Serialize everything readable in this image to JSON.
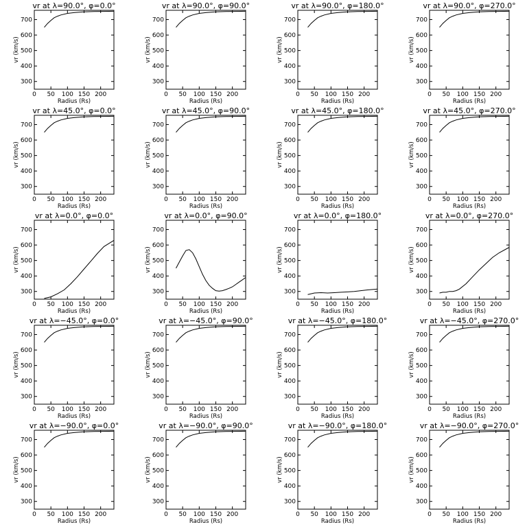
{
  "chart_data": [
    {
      "type": "line",
      "title": "vr at λ=90.0°, φ=0.0°",
      "xlabel": "Radius (Rs)",
      "ylabel": "vr (km/s)",
      "xlim": [
        0,
        240
      ],
      "ylim": [
        250,
        760
      ],
      "xticks": [
        0,
        50,
        100,
        150,
        200
      ],
      "yticks": [
        300,
        400,
        500,
        600,
        700
      ],
      "x": [
        30,
        40,
        50,
        60,
        70,
        80,
        100,
        120,
        150,
        180,
        210,
        240
      ],
      "y": [
        650,
        675,
        695,
        712,
        722,
        730,
        740,
        745,
        750,
        752,
        753,
        754
      ]
    },
    {
      "type": "line",
      "title": "vr at λ=90.0°, φ=90.0°",
      "xlabel": "Radius (Rs)",
      "ylabel": "vr (km/s)",
      "xlim": [
        0,
        240
      ],
      "ylim": [
        250,
        760
      ],
      "xticks": [
        0,
        50,
        100,
        150,
        200
      ],
      "yticks": [
        300,
        400,
        500,
        600,
        700
      ],
      "x": [
        30,
        40,
        50,
        60,
        70,
        80,
        100,
        120,
        150,
        180,
        210,
        240
      ],
      "y": [
        650,
        675,
        695,
        712,
        722,
        730,
        740,
        745,
        750,
        752,
        753,
        754
      ]
    },
    {
      "type": "line",
      "title": "vr at λ=90.0°, φ=180.0°",
      "xlabel": "Radius (Rs)",
      "ylabel": "vr (km/s)",
      "xlim": [
        0,
        240
      ],
      "ylim": [
        250,
        760
      ],
      "xticks": [
        0,
        50,
        100,
        150,
        200
      ],
      "yticks": [
        300,
        400,
        500,
        600,
        700
      ],
      "x": [
        30,
        40,
        50,
        60,
        70,
        80,
        100,
        120,
        150,
        180,
        210,
        240
      ],
      "y": [
        650,
        675,
        695,
        712,
        722,
        730,
        740,
        745,
        750,
        752,
        753,
        754
      ]
    },
    {
      "type": "line",
      "title": "vr at λ=90.0°, φ=270.0°",
      "xlabel": "Radius (Rs)",
      "ylabel": "vr (km/s)",
      "xlim": [
        0,
        240
      ],
      "ylim": [
        250,
        760
      ],
      "xticks": [
        0,
        50,
        100,
        150,
        200
      ],
      "yticks": [
        300,
        400,
        500,
        600,
        700
      ],
      "x": [
        30,
        40,
        50,
        60,
        70,
        80,
        100,
        120,
        150,
        180,
        210,
        240
      ],
      "y": [
        650,
        675,
        695,
        712,
        722,
        730,
        740,
        745,
        750,
        752,
        753,
        754
      ]
    },
    {
      "type": "line",
      "title": "vr at λ=45.0°, φ=0.0°",
      "xlabel": "Radius (Rs)",
      "ylabel": "vr (km/s)",
      "xlim": [
        0,
        240
      ],
      "ylim": [
        250,
        760
      ],
      "xticks": [
        0,
        50,
        100,
        150,
        200
      ],
      "yticks": [
        300,
        400,
        500,
        600,
        700
      ],
      "x": [
        30,
        40,
        50,
        60,
        70,
        80,
        100,
        120,
        150,
        180,
        210,
        240
      ],
      "y": [
        650,
        675,
        695,
        712,
        722,
        730,
        740,
        745,
        750,
        752,
        753,
        754
      ]
    },
    {
      "type": "line",
      "title": "vr at λ=45.0°, φ=90.0°",
      "xlabel": "Radius (Rs)",
      "ylabel": "vr (km/s)",
      "xlim": [
        0,
        240
      ],
      "ylim": [
        250,
        760
      ],
      "xticks": [
        0,
        50,
        100,
        150,
        200
      ],
      "yticks": [
        300,
        400,
        500,
        600,
        700
      ],
      "x": [
        30,
        40,
        50,
        60,
        70,
        80,
        100,
        120,
        150,
        180,
        210,
        240
      ],
      "y": [
        650,
        675,
        695,
        712,
        722,
        730,
        740,
        745,
        750,
        752,
        753,
        754
      ]
    },
    {
      "type": "line",
      "title": "vr at λ=45.0°, φ=180.0°",
      "xlabel": "Radius (Rs)",
      "ylabel": "vr (km/s)",
      "xlim": [
        0,
        240
      ],
      "ylim": [
        250,
        760
      ],
      "xticks": [
        0,
        50,
        100,
        150,
        200
      ],
      "yticks": [
        300,
        400,
        500,
        600,
        700
      ],
      "x": [
        30,
        40,
        50,
        60,
        70,
        80,
        100,
        120,
        150,
        180,
        210,
        240
      ],
      "y": [
        650,
        675,
        695,
        712,
        722,
        730,
        740,
        745,
        750,
        752,
        753,
        754
      ]
    },
    {
      "type": "line",
      "title": "vr at λ=45.0°, φ=270.0°",
      "xlabel": "Radius (Rs)",
      "ylabel": "vr (km/s)",
      "xlim": [
        0,
        240
      ],
      "ylim": [
        250,
        760
      ],
      "xticks": [
        0,
        50,
        100,
        150,
        200
      ],
      "yticks": [
        300,
        400,
        500,
        600,
        700
      ],
      "x": [
        30,
        40,
        50,
        60,
        70,
        80,
        100,
        120,
        150,
        180,
        210,
        240
      ],
      "y": [
        650,
        675,
        695,
        712,
        722,
        730,
        740,
        745,
        750,
        752,
        753,
        754
      ]
    },
    {
      "type": "line",
      "title": "vr at λ=0.0°, φ=0.0°",
      "xlabel": "Radius (Rs)",
      "ylabel": "vr (km/s)",
      "xlim": [
        0,
        240
      ],
      "ylim": [
        250,
        760
      ],
      "xticks": [
        0,
        50,
        100,
        150,
        200
      ],
      "yticks": [
        300,
        400,
        500,
        600,
        700
      ],
      "x": [
        30,
        50,
        70,
        90,
        110,
        130,
        150,
        170,
        190,
        210,
        240
      ],
      "y": [
        255,
        265,
        285,
        310,
        350,
        395,
        445,
        495,
        545,
        590,
        630
      ]
    },
    {
      "type": "line",
      "title": "vr at λ=0.0°, φ=90.0°",
      "xlabel": "Radius (Rs)",
      "ylabel": "vr (km/s)",
      "xlim": [
        0,
        240
      ],
      "ylim": [
        250,
        760
      ],
      "xticks": [
        0,
        50,
        100,
        150,
        200
      ],
      "yticks": [
        300,
        400,
        500,
        600,
        700
      ],
      "x": [
        30,
        40,
        50,
        60,
        70,
        80,
        90,
        100,
        110,
        120,
        130,
        140,
        150,
        160,
        170,
        180,
        190,
        200,
        210,
        220,
        230,
        240
      ],
      "y": [
        450,
        490,
        530,
        565,
        570,
        550,
        510,
        460,
        410,
        370,
        340,
        320,
        305,
        302,
        305,
        312,
        320,
        330,
        345,
        360,
        375,
        390
      ]
    },
    {
      "type": "line",
      "title": "vr at λ=0.0°, φ=180.0°",
      "xlabel": "Radius (Rs)",
      "ylabel": "vr (km/s)",
      "xlim": [
        0,
        240
      ],
      "ylim": [
        250,
        760
      ],
      "xticks": [
        0,
        50,
        100,
        150,
        200
      ],
      "yticks": [
        300,
        400,
        500,
        600,
        700
      ],
      "x": [
        30,
        50,
        70,
        90,
        110,
        130,
        150,
        170,
        190,
        210,
        240
      ],
      "y": [
        280,
        290,
        292,
        290,
        292,
        295,
        297,
        300,
        305,
        310,
        315
      ]
    },
    {
      "type": "line",
      "title": "vr at λ=0.0°, φ=270.0°",
      "xlabel": "Radius (Rs)",
      "ylabel": "vr (km/s)",
      "xlim": [
        0,
        240
      ],
      "ylim": [
        250,
        760
      ],
      "xticks": [
        0,
        50,
        100,
        150,
        200
      ],
      "yticks": [
        300,
        400,
        500,
        600,
        700
      ],
      "x": [
        30,
        40,
        50,
        60,
        70,
        80,
        90,
        110,
        130,
        150,
        170,
        190,
        210,
        240
      ],
      "y": [
        290,
        295,
        295,
        300,
        300,
        305,
        315,
        350,
        395,
        440,
        480,
        520,
        550,
        585
      ]
    },
    {
      "type": "line",
      "title": "vr at λ=−45.0°, φ=0.0°",
      "xlabel": "Radius (Rs)",
      "ylabel": "vr (km/s)",
      "xlim": [
        0,
        240
      ],
      "ylim": [
        250,
        760
      ],
      "xticks": [
        0,
        50,
        100,
        150,
        200
      ],
      "yticks": [
        300,
        400,
        500,
        600,
        700
      ],
      "x": [
        30,
        40,
        50,
        60,
        70,
        80,
        100,
        120,
        150,
        180,
        210,
        240
      ],
      "y": [
        650,
        675,
        695,
        712,
        722,
        730,
        740,
        745,
        750,
        752,
        753,
        754
      ]
    },
    {
      "type": "line",
      "title": "vr at λ=−45.0°, φ=90.0°",
      "xlabel": "Radius (Rs)",
      "ylabel": "vr (km/s)",
      "xlim": [
        0,
        240
      ],
      "ylim": [
        250,
        760
      ],
      "xticks": [
        0,
        50,
        100,
        150,
        200
      ],
      "yticks": [
        300,
        400,
        500,
        600,
        700
      ],
      "x": [
        30,
        40,
        50,
        60,
        70,
        80,
        100,
        120,
        150,
        180,
        210,
        240
      ],
      "y": [
        650,
        675,
        695,
        712,
        722,
        730,
        740,
        745,
        750,
        752,
        753,
        754
      ]
    },
    {
      "type": "line",
      "title": "vr at λ=−45.0°, φ=180.0°",
      "xlabel": "Radius (Rs)",
      "ylabel": "vr (km/s)",
      "xlim": [
        0,
        240
      ],
      "ylim": [
        250,
        760
      ],
      "xticks": [
        0,
        50,
        100,
        150,
        200
      ],
      "yticks": [
        300,
        400,
        500,
        600,
        700
      ],
      "x": [
        30,
        40,
        50,
        60,
        70,
        80,
        100,
        120,
        150,
        180,
        210,
        240
      ],
      "y": [
        650,
        675,
        695,
        712,
        722,
        730,
        740,
        745,
        750,
        752,
        753,
        754
      ]
    },
    {
      "type": "line",
      "title": "vr at λ=−45.0°, φ=270.0°",
      "xlabel": "Radius (Rs)",
      "ylabel": "vr (km/s)",
      "xlim": [
        0,
        240
      ],
      "ylim": [
        250,
        760
      ],
      "xticks": [
        0,
        50,
        100,
        150,
        200
      ],
      "yticks": [
        300,
        400,
        500,
        600,
        700
      ],
      "x": [
        30,
        40,
        50,
        60,
        70,
        80,
        100,
        120,
        150,
        180,
        210,
        240
      ],
      "y": [
        650,
        675,
        695,
        712,
        722,
        730,
        740,
        745,
        750,
        752,
        753,
        754
      ]
    },
    {
      "type": "line",
      "title": "vr at λ=−90.0°, φ=0.0°",
      "xlabel": "Radius (Rs)",
      "ylabel": "vr (km/s)",
      "xlim": [
        0,
        240
      ],
      "ylim": [
        250,
        760
      ],
      "xticks": [
        0,
        50,
        100,
        150,
        200
      ],
      "yticks": [
        300,
        400,
        500,
        600,
        700
      ],
      "x": [
        30,
        40,
        50,
        60,
        70,
        80,
        100,
        120,
        150,
        180,
        210,
        240
      ],
      "y": [
        650,
        675,
        695,
        712,
        722,
        730,
        740,
        745,
        750,
        752,
        753,
        754
      ]
    },
    {
      "type": "line",
      "title": "vr at λ=−90.0°, φ=90.0°",
      "xlabel": "Radius (Rs)",
      "ylabel": "vr (km/s)",
      "xlim": [
        0,
        240
      ],
      "ylim": [
        250,
        760
      ],
      "xticks": [
        0,
        50,
        100,
        150,
        200
      ],
      "yticks": [
        300,
        400,
        500,
        600,
        700
      ],
      "x": [
        30,
        40,
        50,
        60,
        70,
        80,
        100,
        120,
        150,
        180,
        210,
        240
      ],
      "y": [
        650,
        675,
        695,
        712,
        722,
        730,
        740,
        745,
        750,
        752,
        753,
        754
      ]
    },
    {
      "type": "line",
      "title": "vr at λ=−90.0°, φ=180.0°",
      "xlabel": "Radius (Rs)",
      "ylabel": "vr (km/s)",
      "xlim": [
        0,
        240
      ],
      "ylim": [
        250,
        760
      ],
      "xticks": [
        0,
        50,
        100,
        150,
        200
      ],
      "yticks": [
        300,
        400,
        500,
        600,
        700
      ],
      "x": [
        30,
        40,
        50,
        60,
        70,
        80,
        100,
        120,
        150,
        180,
        210,
        240
      ],
      "y": [
        650,
        675,
        695,
        712,
        722,
        730,
        740,
        745,
        750,
        752,
        753,
        754
      ]
    },
    {
      "type": "line",
      "title": "vr at λ=−90.0°, φ=270.0°",
      "xlabel": "Radius (Rs)",
      "ylabel": "vr (km/s)",
      "xlim": [
        0,
        240
      ],
      "ylim": [
        250,
        760
      ],
      "xticks": [
        0,
        50,
        100,
        150,
        200
      ],
      "yticks": [
        300,
        400,
        500,
        600,
        700
      ],
      "x": [
        30,
        40,
        50,
        60,
        70,
        80,
        100,
        120,
        150,
        180,
        210,
        240
      ],
      "y": [
        650,
        675,
        695,
        712,
        722,
        730,
        740,
        745,
        750,
        752,
        753,
        754
      ]
    }
  ]
}
